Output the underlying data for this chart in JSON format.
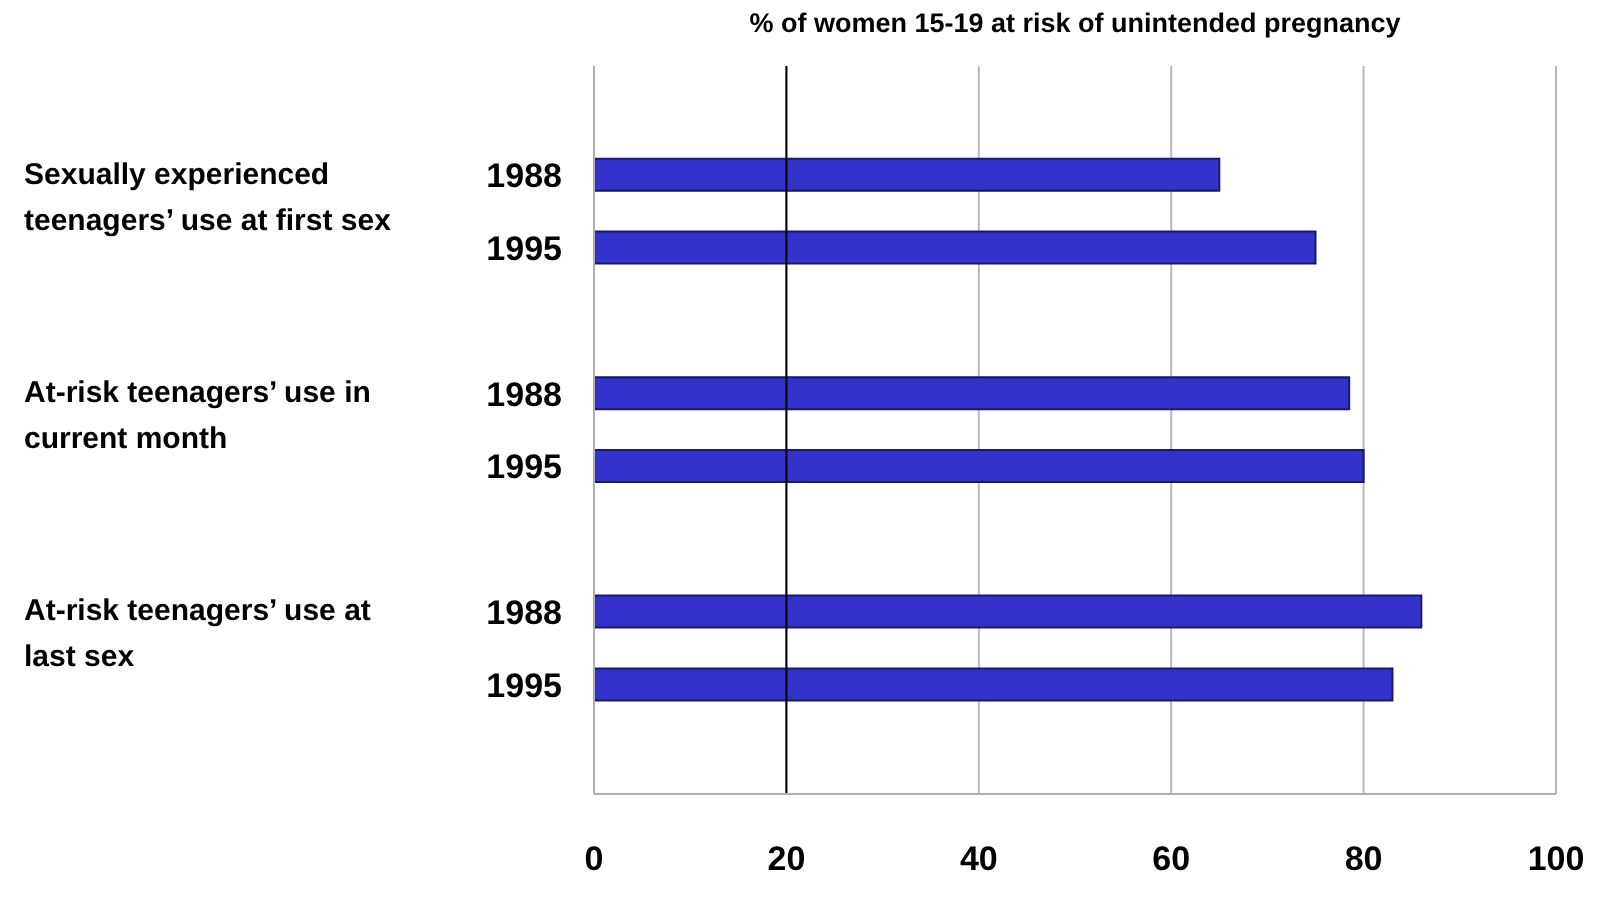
{
  "chart_data": {
    "type": "bar",
    "orientation": "horizontal",
    "title": "% of women 15-19 at risk of unintended pregnancy",
    "categories": [
      null,
      "1988",
      "1995",
      null,
      "1988",
      "1995",
      null,
      "1988",
      "1995",
      null
    ],
    "values": [
      null,
      65,
      75,
      null,
      78.5,
      80,
      null,
      86,
      83,
      null
    ],
    "color": "#3333cc",
    "xlim": [
      0,
      100
    ],
    "xticks": [
      0,
      20,
      40,
      60,
      80,
      100
    ],
    "grid": "x",
    "ref_lines": [
      {
        "axis": "x",
        "value": 20,
        "color": "#000000"
      }
    ],
    "annotations": [
      "Sexually experienced teenagers’ use at first sex",
      "At-risk teenagers’ use in current month",
      "At-risk teenagers’ use at last sex"
    ]
  }
}
